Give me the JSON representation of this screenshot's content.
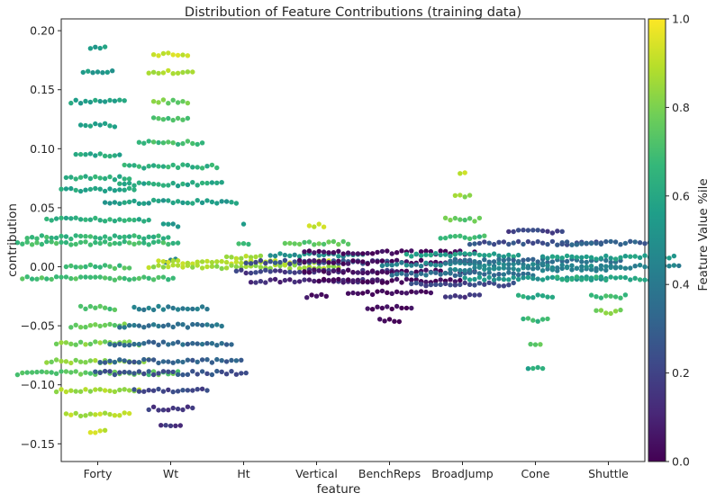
{
  "chart_data": {
    "type": "swarm",
    "title": "Distribution of Feature Contributions (training data)",
    "xlabel": "feature",
    "ylabel": "contribution",
    "categories": [
      "Forty",
      "Wt",
      "Ht",
      "Vertical",
      "BenchReps",
      "BroadJump",
      "Cone",
      "Shuttle"
    ],
    "ylim": [
      -0.165,
      0.21
    ],
    "yticks": [
      -0.15,
      -0.1,
      -0.05,
      0.0,
      0.05,
      0.1,
      0.15,
      0.2
    ],
    "ytick_labels": [
      "−0.15",
      "−0.10",
      "−0.05",
      "0.00",
      "0.05",
      "0.10",
      "0.15",
      "0.20"
    ],
    "colorbar": {
      "label": "Feature Value %ile",
      "range": [
        0.0,
        1.0
      ],
      "ticks": [
        0.0,
        0.2,
        0.4,
        0.6,
        0.8,
        1.0
      ],
      "tick_labels": [
        "0.0",
        "0.2",
        "0.4",
        "0.6",
        "0.8",
        "1.0"
      ],
      "colormap": "viridis",
      "stops": [
        "#440154",
        "#482878",
        "#3e4989",
        "#31688e",
        "#26828e",
        "#1f9e89",
        "#35b779",
        "#6ece58",
        "#b5de2b",
        "#fde725"
      ]
    },
    "series": [
      {
        "name": "Forty",
        "groups": [
          {
            "y": 0.185,
            "n": 4,
            "v": 0.55
          },
          {
            "y": 0.165,
            "n": 7,
            "v": 0.55
          },
          {
            "y": 0.14,
            "n": 12,
            "v": 0.56
          },
          {
            "y": 0.12,
            "n": 8,
            "v": 0.58
          },
          {
            "y": 0.095,
            "n": 10,
            "v": 0.6
          },
          {
            "y": 0.075,
            "n": 14,
            "v": 0.62
          },
          {
            "y": 0.065,
            "n": 16,
            "v": 0.6
          },
          {
            "y": 0.04,
            "n": 22,
            "v": 0.62
          },
          {
            "y": 0.025,
            "n": 30,
            "v": 0.66
          },
          {
            "y": 0.02,
            "n": 34,
            "v": 0.68
          },
          {
            "y": 0.0,
            "n": 14,
            "v": 0.7
          },
          {
            "y": -0.01,
            "n": 32,
            "v": 0.7
          },
          {
            "y": -0.035,
            "n": 8,
            "v": 0.72
          },
          {
            "y": -0.05,
            "n": 12,
            "v": 0.76
          },
          {
            "y": -0.065,
            "n": 18,
            "v": 0.8
          },
          {
            "y": -0.08,
            "n": 22,
            "v": 0.82
          },
          {
            "y": -0.09,
            "n": 34,
            "v": 0.74
          },
          {
            "y": -0.105,
            "n": 18,
            "v": 0.86
          },
          {
            "y": -0.125,
            "n": 14,
            "v": 0.88
          },
          {
            "y": -0.14,
            "n": 4,
            "v": 0.9
          }
        ]
      },
      {
        "name": "Wt",
        "groups": [
          {
            "y": 0.18,
            "n": 8,
            "v": 0.93
          },
          {
            "y": 0.165,
            "n": 10,
            "v": 0.88
          },
          {
            "y": 0.14,
            "n": 8,
            "v": 0.78
          },
          {
            "y": 0.125,
            "n": 8,
            "v": 0.72
          },
          {
            "y": 0.105,
            "n": 14,
            "v": 0.68
          },
          {
            "y": 0.085,
            "n": 20,
            "v": 0.64
          },
          {
            "y": 0.07,
            "n": 22,
            "v": 0.6
          },
          {
            "y": 0.055,
            "n": 28,
            "v": 0.56
          },
          {
            "y": 0.035,
            "n": 4,
            "v": 0.55
          },
          {
            "y": 0.005,
            "n": 3,
            "v": 0.45
          },
          {
            "y": -0.035,
            "n": 16,
            "v": 0.42
          },
          {
            "y": -0.05,
            "n": 22,
            "v": 0.38
          },
          {
            "y": -0.065,
            "n": 26,
            "v": 0.34
          },
          {
            "y": -0.08,
            "n": 30,
            "v": 0.3
          },
          {
            "y": -0.09,
            "n": 32,
            "v": 0.26
          },
          {
            "y": -0.105,
            "n": 16,
            "v": 0.22
          },
          {
            "y": -0.12,
            "n": 10,
            "v": 0.18
          },
          {
            "y": -0.135,
            "n": 5,
            "v": 0.15
          }
        ]
      },
      {
        "name": "Ht",
        "groups": [
          {
            "y": 0.035,
            "n": 1,
            "v": 0.55
          },
          {
            "y": 0.02,
            "n": 3,
            "v": 0.7
          },
          {
            "y": 0.008,
            "n": 8,
            "v": 0.85
          },
          {
            "y": 0.004,
            "n": 36,
            "v": 0.9
          },
          {
            "y": 0.0,
            "n": 40,
            "v": 0.86
          }
        ]
      },
      {
        "name": "Vertical",
        "groups": [
          {
            "y": 0.035,
            "n": 4,
            "v": 0.9
          },
          {
            "y": 0.02,
            "n": 14,
            "v": 0.75
          },
          {
            "y": 0.01,
            "n": 20,
            "v": 0.5
          },
          {
            "y": 0.004,
            "n": 30,
            "v": 0.25
          },
          {
            "y": -0.004,
            "n": 34,
            "v": 0.18
          },
          {
            "y": -0.012,
            "n": 28,
            "v": 0.12
          },
          {
            "y": -0.025,
            "n": 5,
            "v": 0.06
          }
        ]
      },
      {
        "name": "BenchReps",
        "groups": [
          {
            "y": 0.012,
            "n": 36,
            "v": 0.02
          },
          {
            "y": 0.004,
            "n": 38,
            "v": 0.03
          },
          {
            "y": -0.004,
            "n": 36,
            "v": 0.03
          },
          {
            "y": -0.012,
            "n": 30,
            "v": 0.02
          },
          {
            "y": -0.022,
            "n": 18,
            "v": 0.02
          },
          {
            "y": -0.035,
            "n": 10,
            "v": 0.01
          },
          {
            "y": -0.045,
            "n": 5,
            "v": 0.01
          }
        ]
      },
      {
        "name": "BroadJump",
        "groups": [
          {
            "y": 0.08,
            "n": 2,
            "v": 0.92
          },
          {
            "y": 0.06,
            "n": 4,
            "v": 0.82
          },
          {
            "y": 0.04,
            "n": 8,
            "v": 0.75
          },
          {
            "y": 0.025,
            "n": 10,
            "v": 0.68
          },
          {
            "y": 0.01,
            "n": 24,
            "v": 0.55
          },
          {
            "y": 0.002,
            "n": 34,
            "v": 0.45
          },
          {
            "y": -0.006,
            "n": 30,
            "v": 0.35
          },
          {
            "y": -0.015,
            "n": 22,
            "v": 0.22
          },
          {
            "y": -0.025,
            "n": 8,
            "v": 0.15
          }
        ]
      },
      {
        "name": "Cone",
        "groups": [
          {
            "y": 0.03,
            "n": 12,
            "v": 0.2
          },
          {
            "y": 0.02,
            "n": 28,
            "v": 0.25
          },
          {
            "y": 0.005,
            "n": 36,
            "v": 0.35
          },
          {
            "y": -0.002,
            "n": 36,
            "v": 0.45
          },
          {
            "y": -0.01,
            "n": 30,
            "v": 0.52
          },
          {
            "y": -0.025,
            "n": 8,
            "v": 0.6
          },
          {
            "y": -0.045,
            "n": 6,
            "v": 0.66
          },
          {
            "y": -0.065,
            "n": 3,
            "v": 0.75
          },
          {
            "y": -0.085,
            "n": 4,
            "v": 0.6
          }
        ]
      },
      {
        "name": "Shuttle",
        "groups": [
          {
            "y": 0.02,
            "n": 20,
            "v": 0.3
          },
          {
            "y": 0.008,
            "n": 28,
            "v": 0.55
          },
          {
            "y": 0.0,
            "n": 30,
            "v": 0.45
          },
          {
            "y": -0.01,
            "n": 22,
            "v": 0.6
          },
          {
            "y": -0.025,
            "n": 8,
            "v": 0.7
          },
          {
            "y": -0.038,
            "n": 6,
            "v": 0.8
          }
        ]
      }
    ]
  }
}
